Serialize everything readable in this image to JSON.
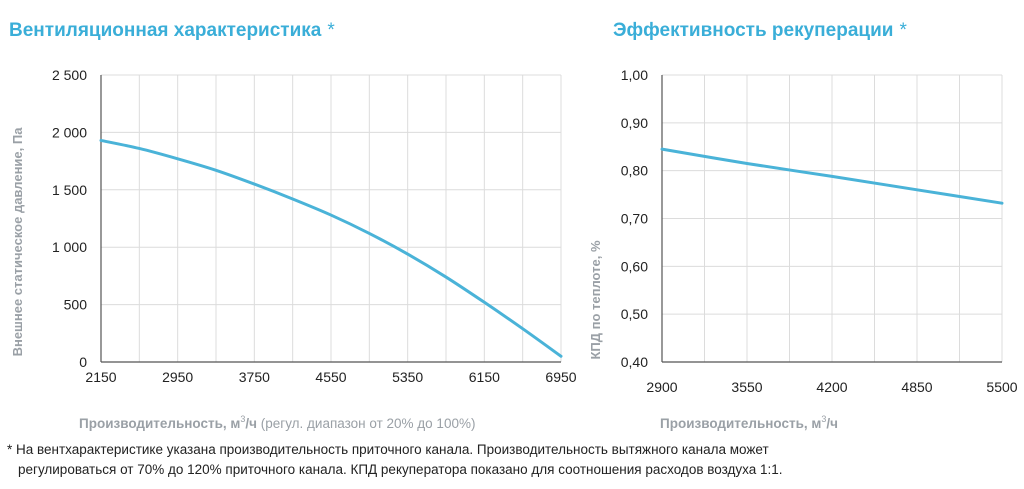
{
  "titles": {
    "left": "Вентиляционная характеристика",
    "right": "Эффективность рекуперации",
    "asterisk": "*"
  },
  "footnote": {
    "line1": "* На вентхарактеристике указана производительность приточного канала. Производительность вытяжного канала может",
    "line2": "регулироваться от 70% до 120% приточного канала. КПД рекуператора показано для соотношения расходов воздуха 1:1."
  },
  "colors": {
    "title": "#3aaed8",
    "line": "#4ab3d8",
    "grid": "#dcdcdc",
    "axis_label": "#9aa0a6"
  },
  "chart_data": [
    {
      "type": "line",
      "ylabel": "Внешнее статическое давление, Па",
      "xlabel_parts": {
        "bold": "Производительность",
        "unit_pre": ", м",
        "sup": "3",
        "unit_post": "/ч",
        "note": " (регул. диапазон от 20% до 100%)"
      },
      "xlim": [
        2150,
        6950
      ],
      "ylim": [
        0,
        2500
      ],
      "xticks": [
        2150,
        2950,
        3750,
        4550,
        5350,
        6150,
        6950
      ],
      "xtick_labels": [
        "2150",
        "2950",
        "3750",
        "4550",
        "5350",
        "6150",
        "6950"
      ],
      "yticks": [
        0,
        500,
        1000,
        1500,
        2000,
        2500
      ],
      "ytick_labels": [
        "0",
        "500",
        "1 000",
        "1 500",
        "2 000",
        "2 500"
      ],
      "x_minor_step": 400,
      "grid": true,
      "series": [
        {
          "x": [
            2150,
            2550,
            2950,
            3350,
            3750,
            4150,
            4550,
            4950,
            5350,
            5750,
            6150,
            6550,
            6950
          ],
          "y": [
            1930,
            1860,
            1770,
            1670,
            1550,
            1420,
            1280,
            1120,
            940,
            740,
            520,
            290,
            50
          ]
        }
      ]
    },
    {
      "type": "line",
      "ylabel": "КПД по теплоте, %",
      "xlabel_parts": {
        "bold": "Производительность",
        "unit_pre": ", м",
        "sup": "3",
        "unit_post": "/ч",
        "note": ""
      },
      "xlim": [
        2900,
        5500
      ],
      "ylim": [
        0.4,
        1.0
      ],
      "xticks": [
        2900,
        3550,
        4200,
        4850,
        5500
      ],
      "xtick_labels": [
        "2900",
        "3550",
        "4200",
        "4850",
        "5500"
      ],
      "yticks": [
        0.4,
        0.5,
        0.6,
        0.7,
        0.8,
        0.9,
        1.0
      ],
      "ytick_labels": [
        "0,40",
        "0,50",
        "0,60",
        "0,70",
        "0,80",
        "0,90",
        "1,00"
      ],
      "x_minor_step": 325,
      "grid": true,
      "series": [
        {
          "x": [
            2900,
            3550,
            4200,
            4850,
            5500
          ],
          "y": [
            0.845,
            0.815,
            0.788,
            0.76,
            0.732
          ]
        }
      ]
    }
  ]
}
